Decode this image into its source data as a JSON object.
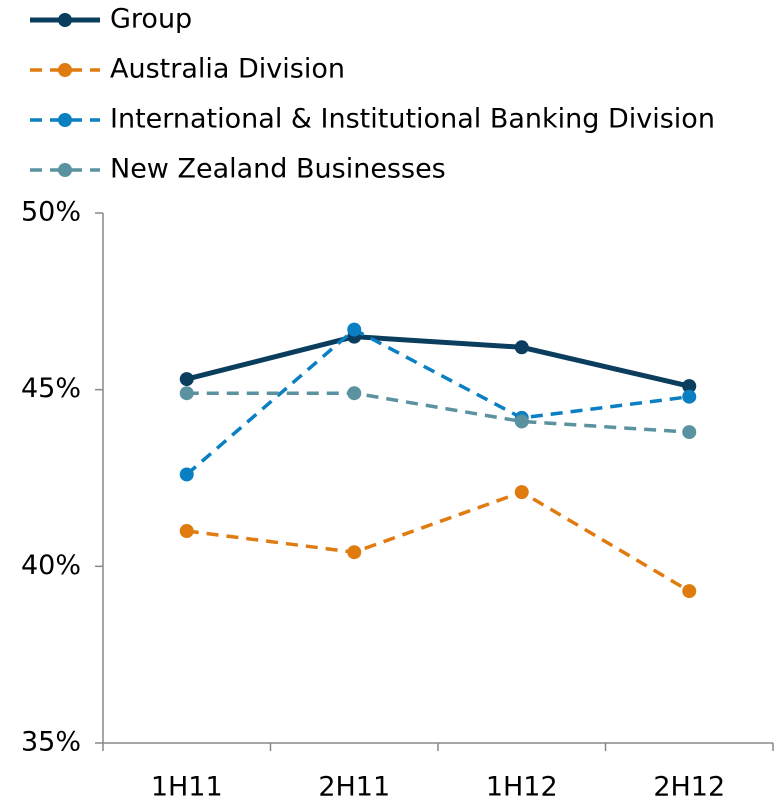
{
  "chart_data": {
    "type": "line",
    "categories": [
      "1H11",
      "2H11",
      "1H12",
      "2H12"
    ],
    "series": [
      {
        "name": "Group",
        "color": "#0b3d5e",
        "style": "solid",
        "values": [
          45.3,
          46.5,
          46.2,
          45.1
        ]
      },
      {
        "name": "Australia Division",
        "color": "#e07b10",
        "style": "dashed",
        "values": [
          41.0,
          40.4,
          42.1,
          39.3
        ]
      },
      {
        "name": "International & Institutional Banking Division",
        "color": "#0a7fc2",
        "style": "dashed",
        "values": [
          42.6,
          46.7,
          44.2,
          44.8
        ]
      },
      {
        "name": "New Zealand Businesses",
        "color": "#5a929f",
        "style": "dashed",
        "values": [
          44.9,
          44.9,
          44.1,
          43.8
        ]
      }
    ],
    "ylim": [
      35,
      50
    ],
    "yticks": [
      {
        "value": 35,
        "label": "35%"
      },
      {
        "value": 40,
        "label": "40%"
      },
      {
        "value": 45,
        "label": "45%"
      },
      {
        "value": 50,
        "label": "50%"
      }
    ],
    "legend": "top-left",
    "grid": false
  }
}
